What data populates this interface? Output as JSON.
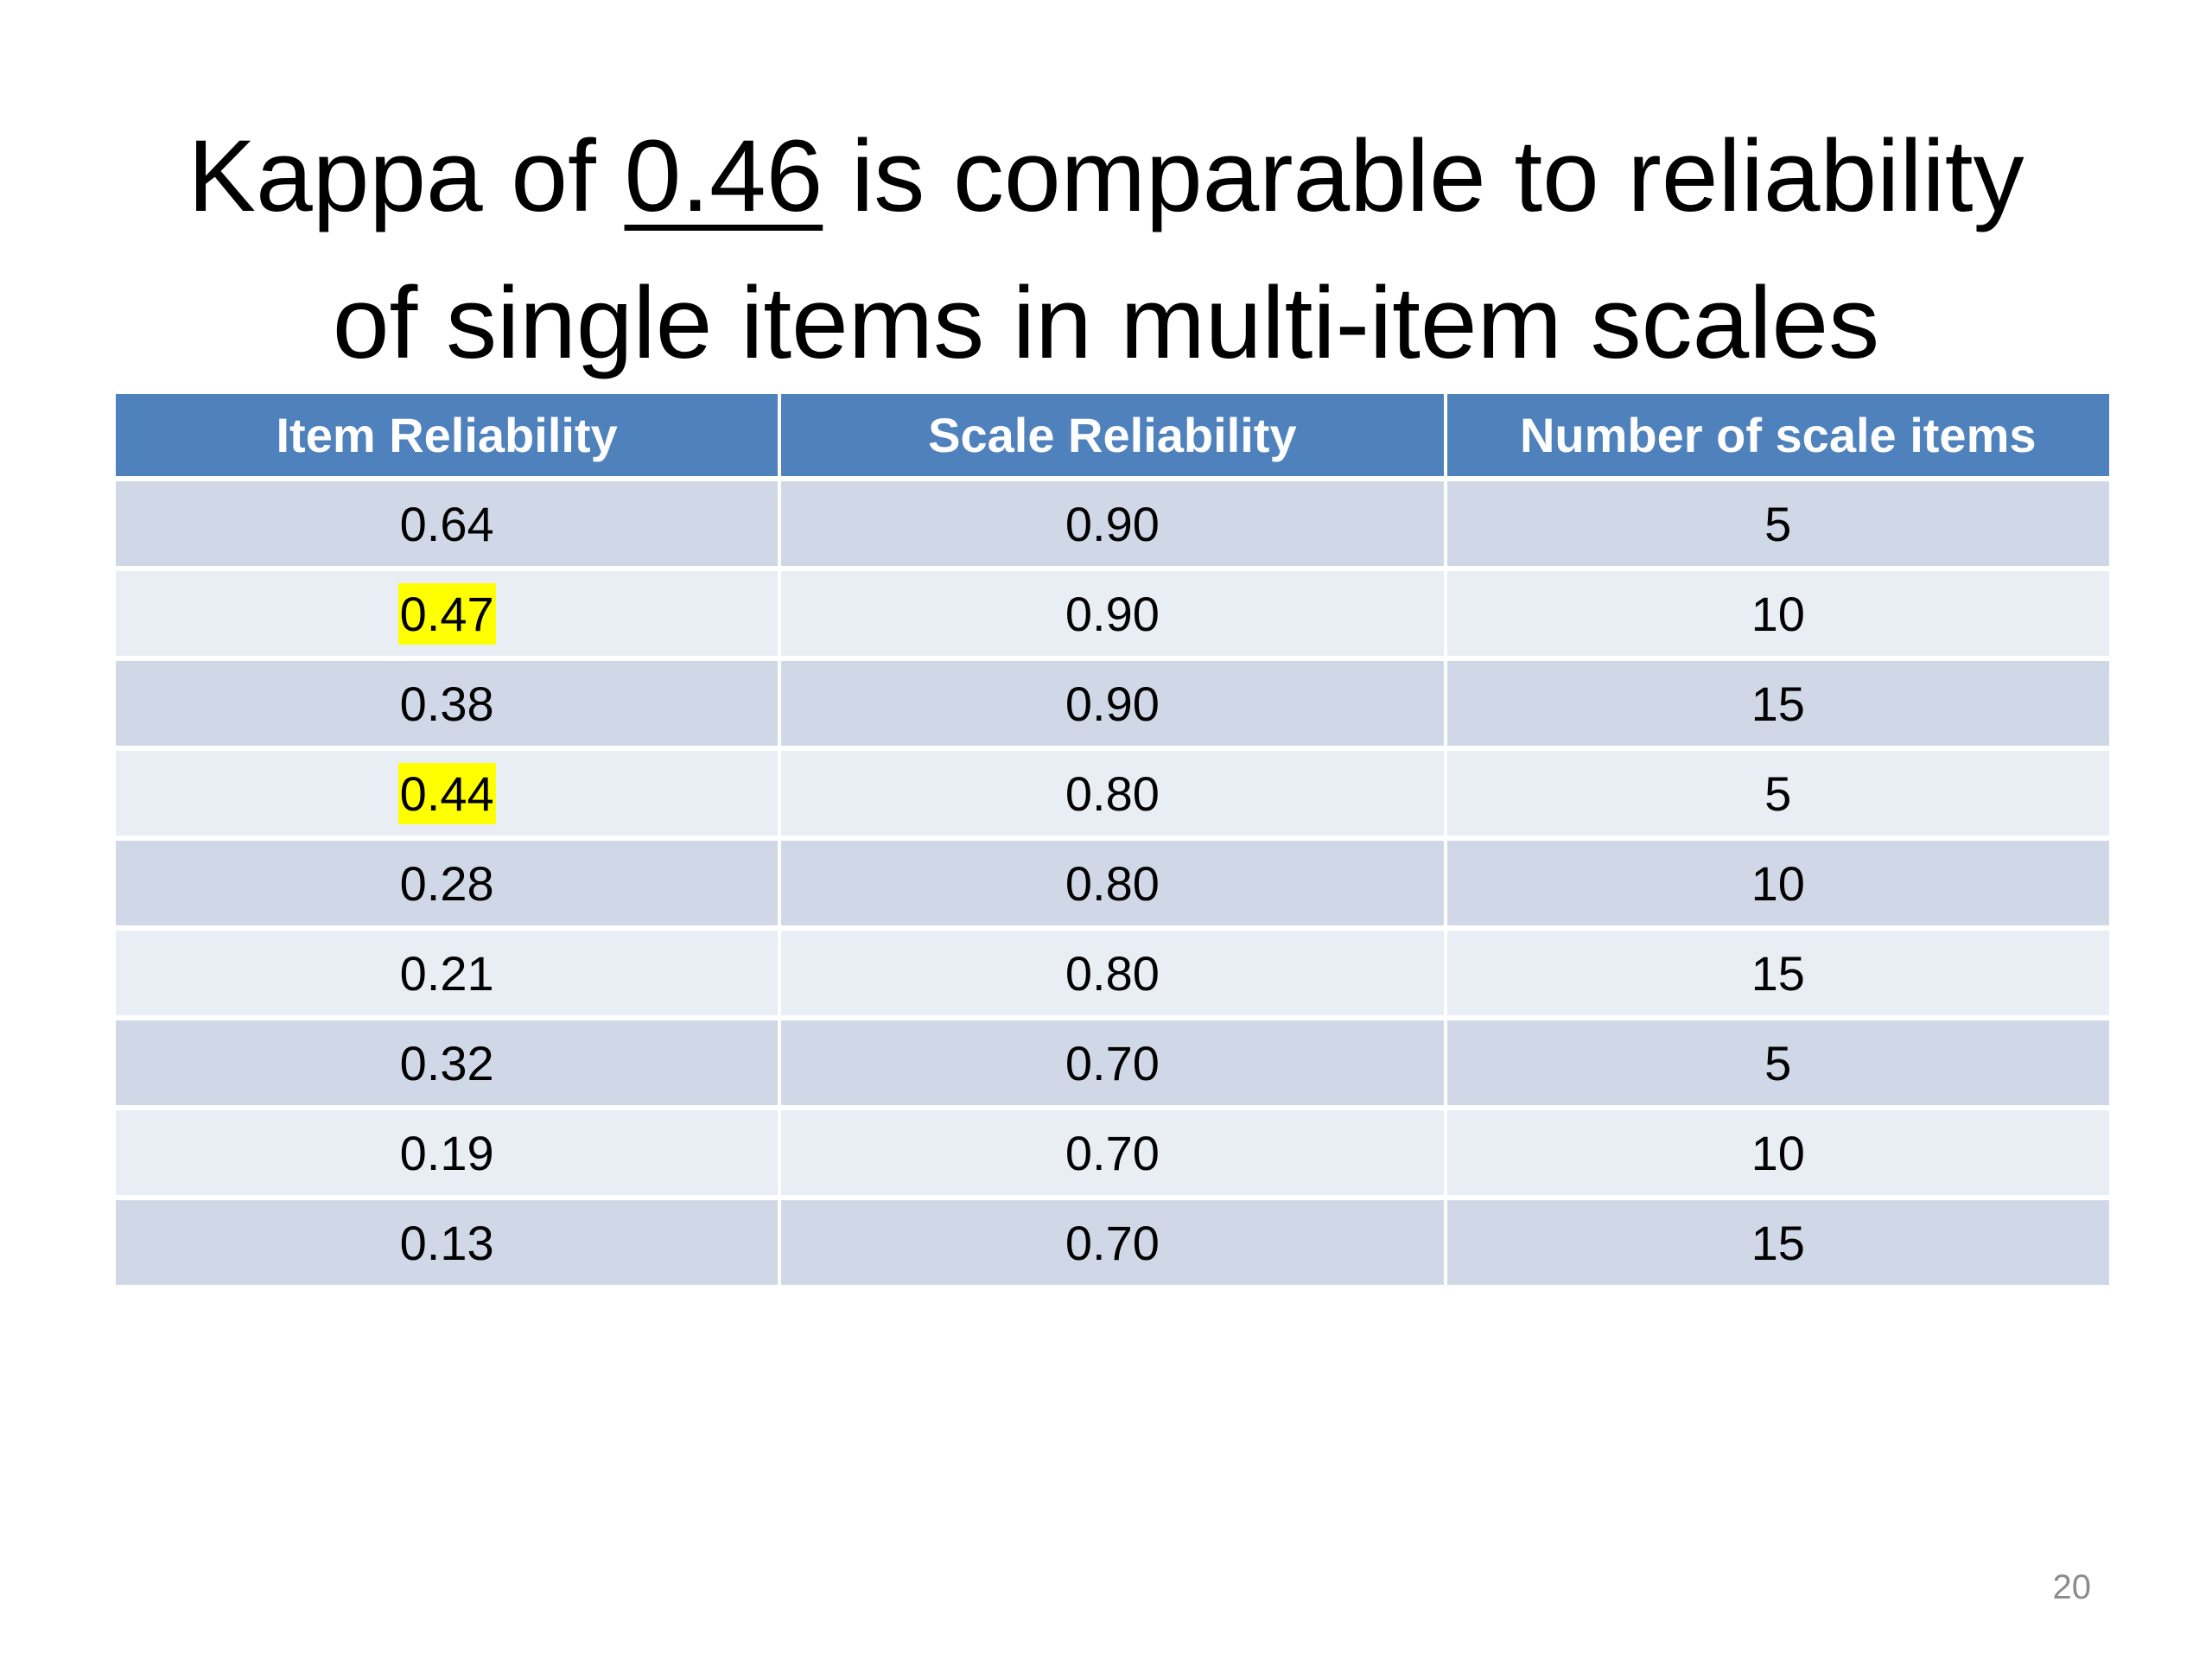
{
  "slide": {
    "title": {
      "line1_before": "Kappa of ",
      "line1_emphasis": "0.46",
      "line1_after": " is comparable to reliability",
      "line2": "of single items in multi-item scales"
    },
    "table": {
      "headers": [
        "Item Reliability",
        "Scale Reliability",
        "Number of scale items"
      ],
      "rows": [
        {
          "item": "0.64",
          "scale": "0.90",
          "count": "5",
          "highlight": false
        },
        {
          "item": "0.47",
          "scale": "0.90",
          "count": "10",
          "highlight": true
        },
        {
          "item": "0.38",
          "scale": "0.90",
          "count": "15",
          "highlight": false
        },
        {
          "item": "0.44",
          "scale": "0.80",
          "count": "5",
          "highlight": true
        },
        {
          "item": "0.28",
          "scale": "0.80",
          "count": "10",
          "highlight": false
        },
        {
          "item": "0.21",
          "scale": "0.80",
          "count": "15",
          "highlight": false
        },
        {
          "item": "0.32",
          "scale": "0.70",
          "count": "5",
          "highlight": false
        },
        {
          "item": "0.19",
          "scale": "0.70",
          "count": "10",
          "highlight": false
        },
        {
          "item": "0.13",
          "scale": "0.70",
          "count": "15",
          "highlight": false
        }
      ]
    },
    "page_number": "20"
  },
  "colors": {
    "header_bg": "#4f81bd",
    "row_dark": "#d0d8e8",
    "row_light": "#e9edf4",
    "highlight": "#ffff00"
  }
}
